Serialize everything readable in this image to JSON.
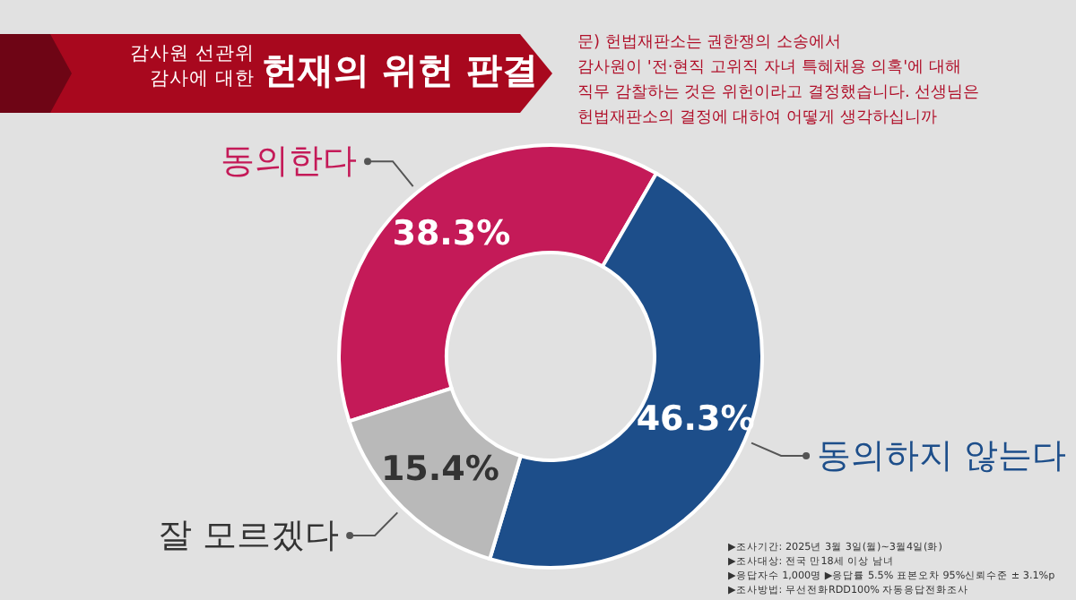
{
  "chart_data": {
    "type": "donut",
    "title": "헌재의 위헌 판결",
    "subtitle": "감사원 선관위\n감사에 대한",
    "categories": [
      "동의한다",
      "동의하지 않는다",
      "잘 모르겠다"
    ],
    "values": [
      38.3,
      46.3,
      15.4
    ],
    "colors": [
      "#c41a58",
      "#1d4e8a",
      "#b9b9b9"
    ],
    "value_labels": [
      "38.3%",
      "46.3%",
      "15.4%"
    ],
    "annotations": [
      "문) 헌법재판소는 권한쟁의 소송에서\n감사원이 '전·현직 고위직 자녀 특혜채용 의혹'에 대해\n직무 감찰하는 것은 위헌이라고 결정했습니다. 선생님은\n헌법재판소의 결정에 대하여 어떻게 생각하십니까",
      "▶조사기간: 2025년 3월 3일(월)~3월4일(화)",
      "▶조사대상: 전국 만18세 이상 남녀",
      "▶응답자수 1,000명 ▶응답률 5.5% 표본오차 95%신뢰수준 ± 3.1%p",
      "▶조사방법: 무선전화RDD100% 자동응답전화조사"
    ]
  }
}
